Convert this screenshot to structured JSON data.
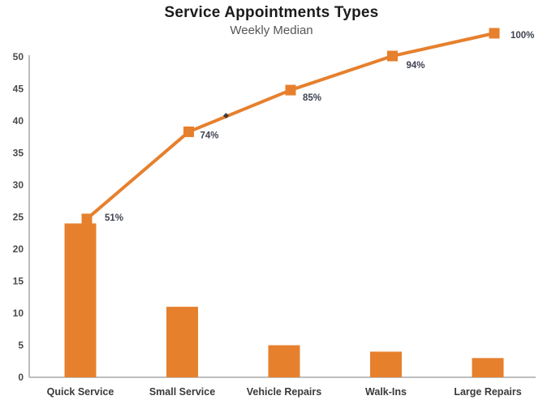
{
  "chart": {
    "title": "Service Appointments Types",
    "subtitle": "Weekly Median"
  },
  "chart_data": {
    "type": "pareto",
    "title": "Service Appointments Types",
    "subtitle": "Weekly Median",
    "categories": [
      "Quick Service",
      "Small Service",
      "Vehicle Repairs",
      "Walk-Ins",
      "Large Repairs"
    ],
    "series": [
      {
        "name": "weekly-median-appointments",
        "type": "bar",
        "values": [
          24,
          11,
          5,
          4,
          3
        ]
      },
      {
        "name": "cumulative-percent",
        "type": "line",
        "values_percent": [
          51,
          74,
          85,
          94,
          100
        ],
        "point_labels": [
          "51%",
          "74%",
          "85%",
          "94%",
          "100%"
        ]
      }
    ],
    "xlabel": "",
    "ylabel": "",
    "y_axis": {
      "min": 0,
      "max": 50,
      "step": 5,
      "tick_labels": [
        "0",
        "5",
        "10",
        "15",
        "20",
        "25",
        "30",
        "35",
        "40",
        "45",
        "50"
      ]
    },
    "grid": false,
    "legend": false,
    "colors": {
      "bar": "#E6802D",
      "line": "#E6802D",
      "marker": "#E6802D",
      "data_label": "#3E4251",
      "axis_line": "#A9A9A9",
      "tick_label": "#4A4A4A",
      "category_label": "#3A3A3A",
      "title": "#1C1C1C",
      "subtitle": "#565656"
    }
  }
}
